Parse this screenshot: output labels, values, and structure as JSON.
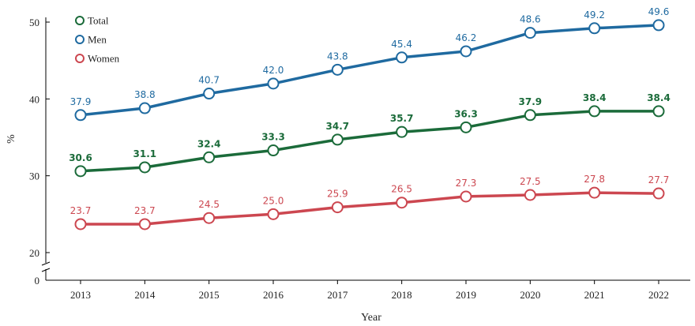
{
  "chart_data": {
    "type": "line",
    "title": "",
    "xlabel": "Year",
    "ylabel": "%",
    "x": [
      2013,
      2014,
      2015,
      2016,
      2017,
      2018,
      2019,
      2020,
      2021,
      2022
    ],
    "y_ticks": [
      0,
      20,
      30,
      40,
      50
    ],
    "ylim": [
      20,
      50
    ],
    "axis_break": true,
    "grid": false,
    "legend_position": "top-left",
    "series": [
      {
        "name": "Total",
        "color": "#1b6b3a",
        "values": [
          30.6,
          31.1,
          32.4,
          33.3,
          34.7,
          35.7,
          36.3,
          37.9,
          38.4,
          38.4
        ],
        "labels": [
          "30.6",
          "31.1",
          "32.4",
          "33.3",
          "34.7",
          "35.7",
          "36.3",
          "37.9",
          "38.4",
          "38.4"
        ]
      },
      {
        "name": "Men",
        "color": "#1f6aa0",
        "values": [
          37.9,
          38.8,
          40.7,
          42.0,
          43.8,
          45.4,
          46.2,
          48.6,
          49.2,
          49.6
        ],
        "labels": [
          "37.9",
          "38.8",
          "40.7",
          "42.0",
          "43.8",
          "45.4",
          "46.2",
          "48.6",
          "49.2",
          "49.6"
        ]
      },
      {
        "name": "Women",
        "color": "#cc4750",
        "values": [
          23.7,
          23.7,
          24.5,
          25.0,
          25.9,
          26.5,
          27.3,
          27.5,
          27.8,
          27.7
        ],
        "labels": [
          "23.7",
          "23.7",
          "24.5",
          "25.0",
          "25.9",
          "26.5",
          "27.3",
          "27.5",
          "27.8",
          "27.7"
        ]
      }
    ]
  }
}
